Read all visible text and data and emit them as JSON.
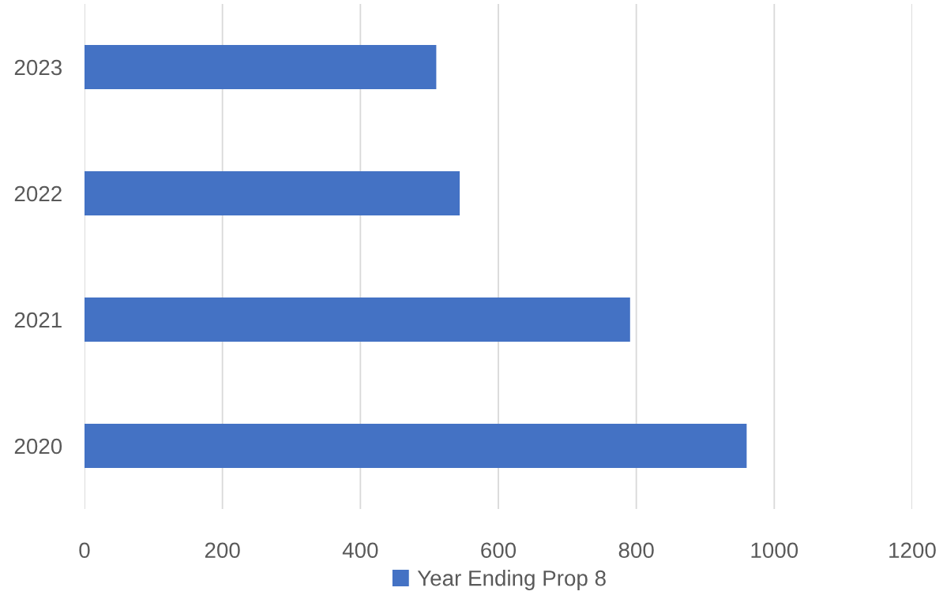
{
  "chart_data": {
    "type": "bar",
    "orientation": "horizontal",
    "categories": [
      "2023",
      "2022",
      "2021",
      "2020"
    ],
    "series": [
      {
        "name": "Year Ending Prop 8",
        "color": "#4472c4",
        "values": [
          510,
          544,
          791,
          960
        ]
      }
    ],
    "xlim": [
      0,
      1200
    ],
    "xticks": [
      0,
      200,
      400,
      600,
      800,
      1000,
      1200
    ],
    "grid": "x",
    "legend": "bottom"
  }
}
